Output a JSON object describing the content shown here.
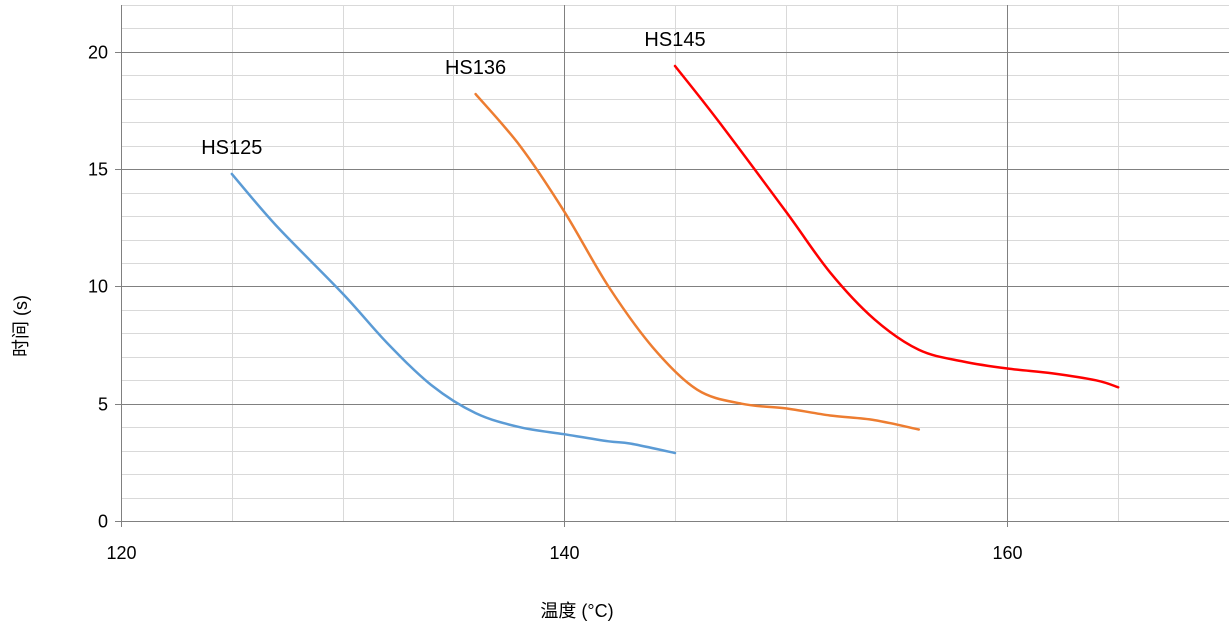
{
  "chart_data": {
    "type": "line",
    "title": "",
    "xlabel": "温度 (°C)",
    "ylabel": "时间 (s)",
    "xlim": [
      120,
      170
    ],
    "ylim": [
      0,
      22
    ],
    "x_major_ticks": [
      120,
      140,
      160
    ],
    "x_minor_step": 5,
    "y_major_ticks": [
      0,
      5,
      10,
      15,
      20
    ],
    "y_minor_step": 1,
    "grid": true,
    "legend": "none",
    "series": [
      {
        "name": "HS125",
        "color": "#5b9bd5",
        "x": [
          125,
          127,
          130,
          132,
          134,
          136,
          138,
          140,
          142,
          143,
          145
        ],
        "y": [
          14.8,
          12.6,
          9.7,
          7.6,
          5.8,
          4.6,
          4.0,
          3.7,
          3.4,
          3.3,
          2.9
        ]
      },
      {
        "name": "HS136",
        "color": "#ed7d31",
        "x": [
          136,
          138,
          140,
          142,
          144,
          146,
          148,
          150,
          152,
          154,
          156
        ],
        "y": [
          18.2,
          16.0,
          13.2,
          10.0,
          7.4,
          5.6,
          5.0,
          4.8,
          4.5,
          4.3,
          3.9
        ]
      },
      {
        "name": "HS145",
        "color": "#ff0000",
        "x": [
          145,
          147,
          150,
          152,
          154,
          156,
          158,
          160,
          162,
          164,
          165
        ],
        "y": [
          19.4,
          17.0,
          13.2,
          10.6,
          8.6,
          7.3,
          6.8,
          6.5,
          6.3,
          6.0,
          5.7
        ]
      }
    ]
  }
}
